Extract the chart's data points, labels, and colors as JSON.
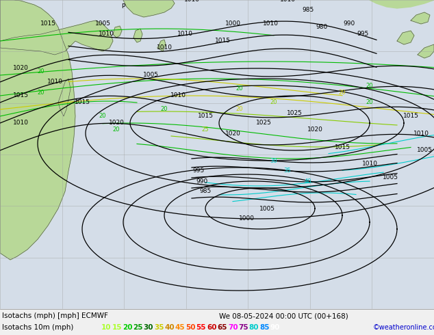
{
  "title_line1": "Isotachs (mph) [mph] ECMWF",
  "title_line2": "We 08-05-2024 00:00 UTC (00+168)",
  "legend_label": "Isotachs 10m (mph)",
  "copyright": "©weatheronline.co.uk",
  "speed_values": [
    "10",
    "15",
    "20",
    "25",
    "30",
    "35",
    "40",
    "45",
    "50",
    "55",
    "60",
    "65",
    "70",
    "75",
    "80",
    "85",
    "90"
  ],
  "speed_colors": [
    "#adff2f",
    "#adff2f",
    "#00cc00",
    "#009900",
    "#006600",
    "#cccc00",
    "#cc8800",
    "#ff8800",
    "#ff4400",
    "#ff0000",
    "#cc0000",
    "#880000",
    "#ff00ff",
    "#880088",
    "#00cccc",
    "#0088ff",
    "#ffffff"
  ],
  "ocean_color": "#d4dde8",
  "land_color_green": "#b8d898",
  "land_color_light": "#d8e8c8",
  "land_color_gray": "#c8c8c8",
  "bottom_bg": "#f0f0f0",
  "bottom_border": "#888888",
  "title_color": "#000000",
  "copyright_color": "#0000cc",
  "grid_color": "#a0a0a0",
  "isobar_color": "#000000",
  "iso20_color": "#00bb00",
  "iso25_color": "#88cc00",
  "iso_yellow_color": "#cccc00",
  "iso_cyan_color": "#00cccc",
  "iso_blue_color": "#0088cc"
}
